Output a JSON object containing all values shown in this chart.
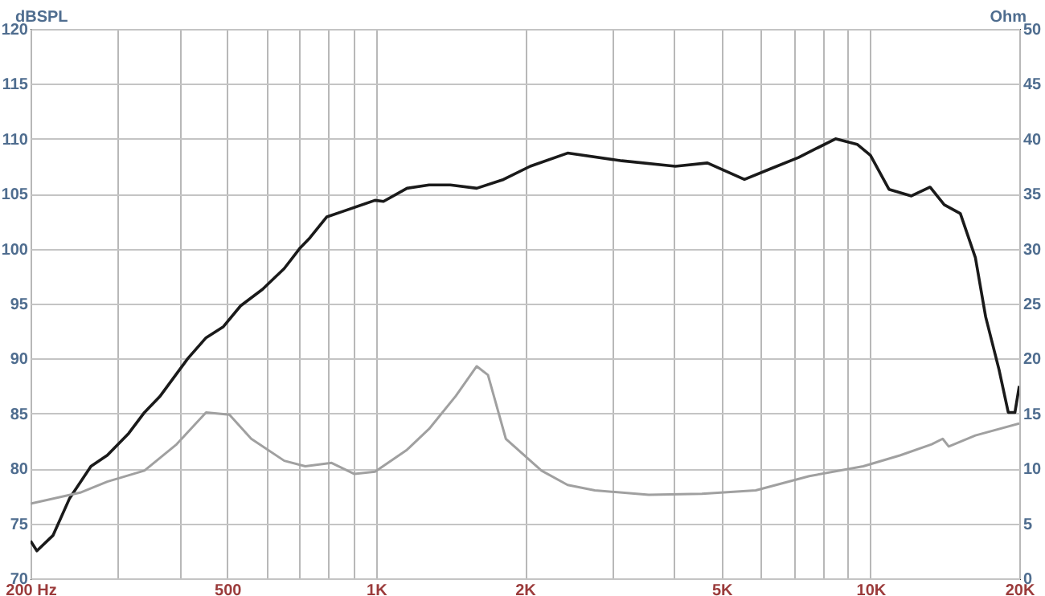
{
  "chart_data": {
    "type": "line",
    "log": "x",
    "ylabel": "dBSPL",
    "y2label": "Ohm",
    "grid": true,
    "xlim": [
      200,
      20000
    ],
    "xticks": [
      {
        "value": 200,
        "label": "200 Hz"
      },
      {
        "value": 300,
        "label": null
      },
      {
        "value": 400,
        "label": null
      },
      500,
      {
        "value": 600,
        "label": null
      },
      {
        "value": 700,
        "label": null
      },
      {
        "value": 800,
        "label": null
      },
      {
        "value": 900,
        "label": null
      },
      {
        "value": 1000,
        "label": "1K"
      },
      {
        "value": 2000,
        "label": "2K"
      },
      {
        "value": 3000,
        "label": null
      },
      {
        "value": 4000,
        "label": null
      },
      {
        "value": 5000,
        "label": "5K"
      },
      {
        "value": 6000,
        "label": null
      },
      {
        "value": 7000,
        "label": null
      },
      {
        "value": 8000,
        "label": null
      },
      {
        "value": 9000,
        "label": null
      },
      {
        "value": 10000,
        "label": "10K"
      },
      {
        "value": 20000,
        "label": "20K"
      }
    ],
    "ylim": [
      70,
      120
    ],
    "yticks": [
      70,
      75,
      80,
      85,
      90,
      95,
      100,
      105,
      110,
      115,
      120
    ],
    "y2lim": [
      0,
      50
    ],
    "y2ticks": [
      0,
      5,
      10,
      15,
      20,
      25,
      30,
      35,
      40,
      45,
      50
    ],
    "series": [
      {
        "color": "#1a1a1a",
        "x": [
          200,
          206,
          222,
          240,
          265,
          286,
          316,
          340,
          366,
          416,
          453,
          491,
          532,
          589,
          652,
          700,
          735,
          795,
          857,
          995,
          1035,
          1155,
          1280,
          1413,
          1598,
          1810,
          2050,
          2440,
          3140,
          4030,
          4680,
          5560,
          6300,
          7150,
          8500,
          9400,
          10000,
          10900,
          12100,
          13200,
          14100,
          15200,
          16300,
          17100,
          18200,
          19000,
          19600,
          20000
        ],
        "values": [
          73.4,
          72.5,
          73.9,
          77.3,
          80.2,
          81.2,
          83.2,
          85.1,
          86.6,
          90,
          91.9,
          92.9,
          94.8,
          96.3,
          98.2,
          100,
          101,
          102.9,
          103.4,
          104.4,
          104.3,
          105.5,
          105.8,
          105.8,
          105.5,
          106.3,
          107.5,
          108.7,
          108,
          107.5,
          107.8,
          106.3,
          107.3,
          108.3,
          110,
          109.5,
          108.5,
          105.4,
          104.8,
          105.6,
          104,
          103.2,
          99.2,
          93.8,
          89,
          85.1,
          85.1,
          87.5
        ]
      },
      {
        "axis": "y2",
        "color": "#a0a0a0",
        "x": [
          200,
          252,
          286,
          340,
          395,
          453,
          505,
          559,
          652,
          719,
          813,
          904,
          995,
          1155,
          1280,
          1450,
          1598,
          1684,
          1830,
          2160,
          2440,
          2770,
          3560,
          4560,
          5860,
          7520,
          9670,
          11500,
          13300,
          14000,
          14400,
          16300,
          20000
        ],
        "values": [
          6.8,
          7.8,
          8.8,
          9.8,
          12.2,
          15.1,
          14.9,
          12.7,
          10.7,
          10.2,
          10.5,
          9.5,
          9.7,
          11.7,
          13.6,
          16.6,
          19.3,
          18.5,
          12.7,
          9.8,
          8.5,
          8,
          7.6,
          7.7,
          8,
          9.3,
          10.2,
          11.2,
          12.2,
          12.7,
          12,
          13,
          14.1
        ]
      }
    ]
  }
}
